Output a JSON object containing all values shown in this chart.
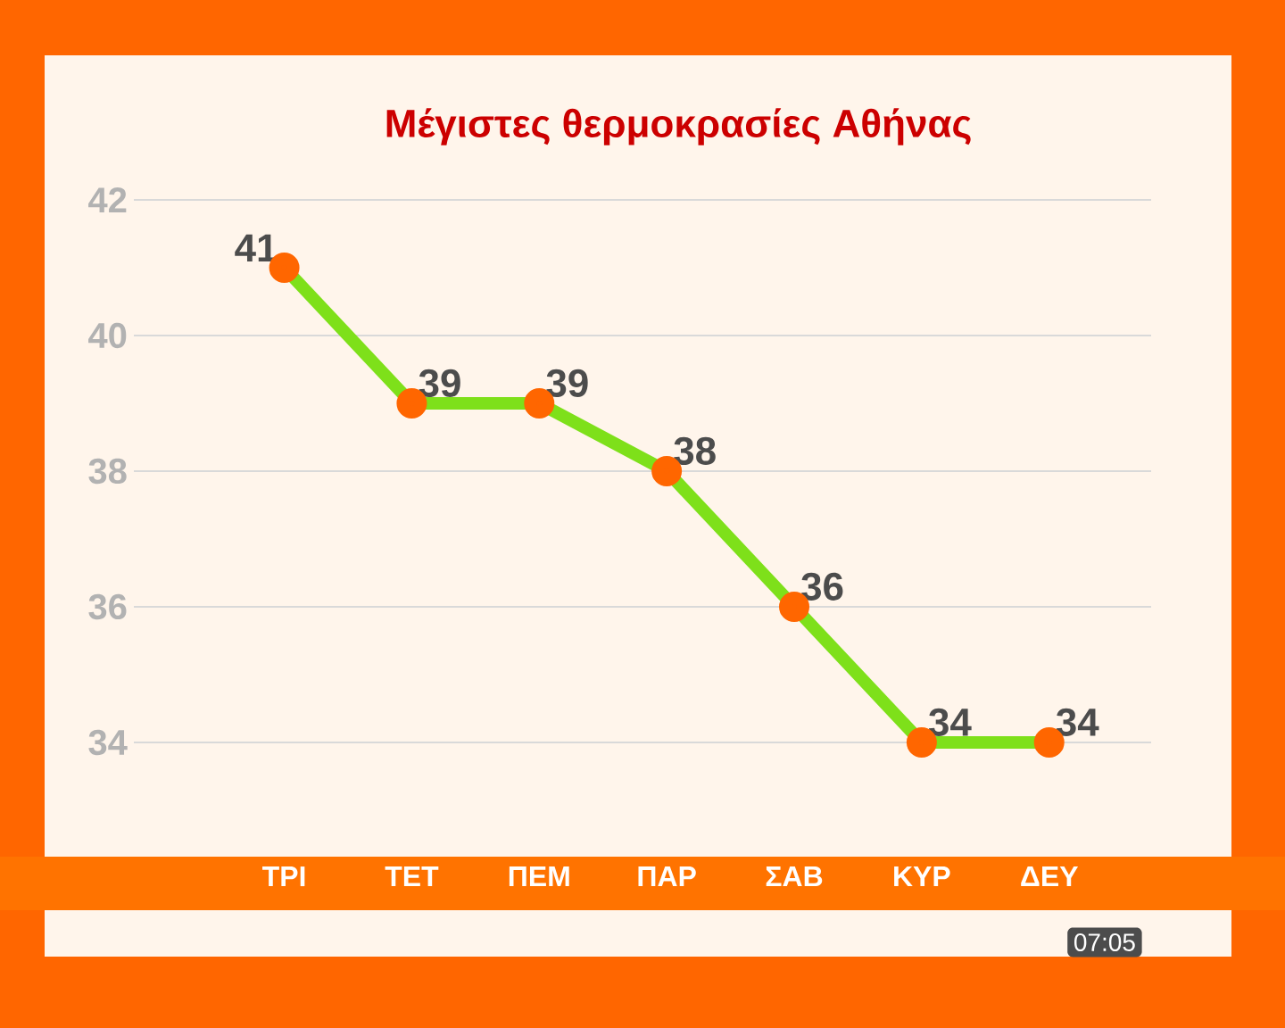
{
  "chart_data": {
    "type": "line",
    "title": "Μέγιστες θερμοκρασίες Αθήνας",
    "categories": [
      "ΤΡΙ",
      "ΤΕΤ",
      "ΠΕΜ",
      "ΠΑΡ",
      "ΣΑΒ",
      "ΚΥΡ",
      "ΔΕΥ"
    ],
    "values": [
      41,
      39,
      39,
      38,
      36,
      34,
      34
    ],
    "color": "#7ee01a",
    "marker": "circle",
    "data_labels": true,
    "grid": "y",
    "ylim": [
      34,
      42
    ],
    "yticks": [
      34,
      36,
      38,
      40,
      42
    ],
    "annotations": [
      "07:05"
    ]
  }
}
